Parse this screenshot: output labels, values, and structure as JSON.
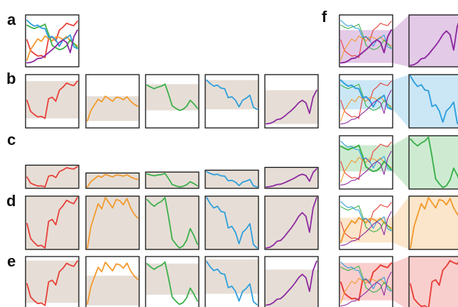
{
  "labels": [
    "a",
    "b",
    "c",
    "d",
    "e",
    "f"
  ],
  "colors": {
    "red": "#e8403a",
    "orange": "#f29a2e",
    "green": "#3cb04b",
    "blue": "#2f9fdc",
    "purple": "#8e2aa0",
    "band": "#e6ded6",
    "frame": "#111111"
  },
  "series": [
    {
      "key": "red",
      "values": [
        0.52,
        0.3,
        0.24,
        0.19,
        0.2,
        0.16,
        0.55,
        0.58,
        0.5,
        0.72,
        0.78,
        0.86,
        0.83,
        0.81,
        0.9
      ]
    },
    {
      "key": "orange",
      "values": [
        0.11,
        0.32,
        0.43,
        0.54,
        0.49,
        0.6,
        0.55,
        0.5,
        0.58,
        0.57,
        0.53,
        0.59,
        0.5,
        0.44,
        0.4
      ]
    },
    {
      "key": "green",
      "values": [
        0.82,
        0.78,
        0.75,
        0.78,
        0.8,
        0.84,
        0.64,
        0.41,
        0.36,
        0.32,
        0.34,
        0.4,
        0.52,
        0.45,
        0.36
      ]
    },
    {
      "key": "blue",
      "values": [
        0.92,
        0.85,
        0.8,
        0.82,
        0.76,
        0.75,
        0.57,
        0.59,
        0.52,
        0.39,
        0.52,
        0.56,
        0.62,
        0.38,
        0.34
      ]
    },
    {
      "key": "purple",
      "values": [
        0.05,
        0.06,
        0.09,
        0.14,
        0.15,
        0.2,
        0.26,
        0.32,
        0.39,
        0.47,
        0.52,
        0.47,
        0.26,
        0.58,
        0.72
      ]
    }
  ]
}
